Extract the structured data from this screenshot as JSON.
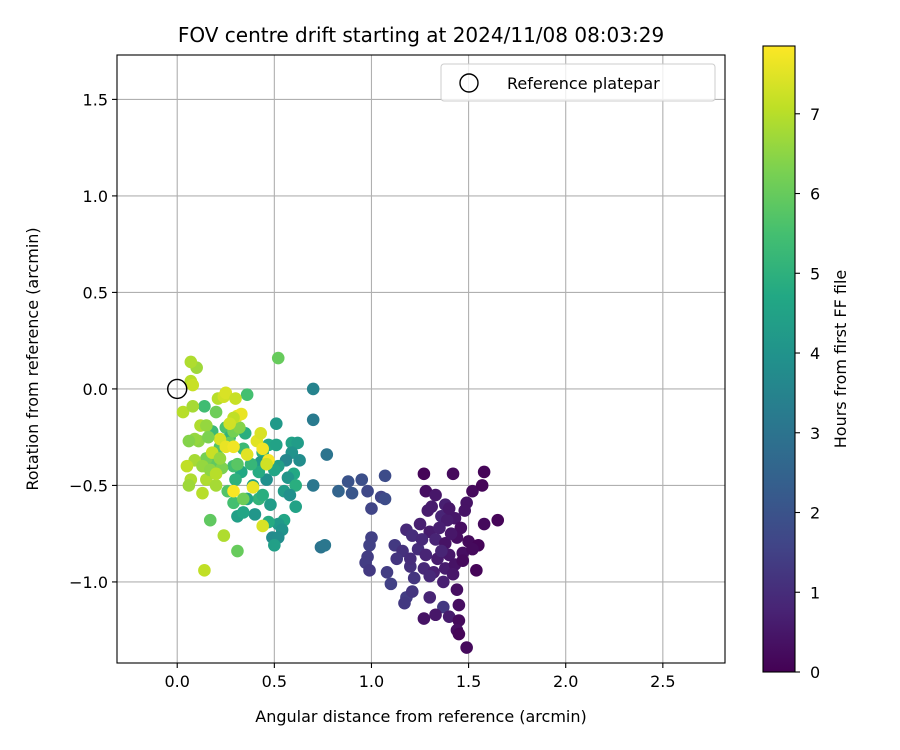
{
  "chart_data": {
    "type": "scatter",
    "title": "FOV centre drift starting at 2024/11/08 08:03:29",
    "xlabel": "Angular distance from reference (arcmin)",
    "ylabel": "Rotation from reference (arcmin)",
    "xlim": [
      -0.31,
      2.82
    ],
    "ylim": [
      -1.42,
      1.73
    ],
    "xticks": [
      "0.0",
      "0.5",
      "1.0",
      "1.5",
      "2.0",
      "2.5"
    ],
    "xtick_values": [
      0.0,
      0.5,
      1.0,
      1.5,
      2.0,
      2.5
    ],
    "yticks": [
      "−1.0",
      "−0.5",
      "0.0",
      "0.5",
      "1.0",
      "1.5"
    ],
    "ytick_values": [
      -1.0,
      -0.5,
      0.0,
      0.5,
      1.0,
      1.5
    ],
    "grid": true,
    "legend": {
      "placement": "top-right",
      "entries": [
        "Reference platepar"
      ]
    },
    "reference_point": {
      "x": 0.0,
      "y": 0.0,
      "marker": "open-circle"
    },
    "colorbar": {
      "label": "Hours from first FF file",
      "colormap": "viridis",
      "range": [
        0,
        7.85
      ],
      "ticks": [
        "0",
        "1",
        "2",
        "3",
        "4",
        "5",
        "6",
        "7"
      ],
      "tick_values": [
        0,
        1,
        2,
        3,
        4,
        5,
        6,
        7
      ]
    },
    "points": [
      {
        "x": 1.27,
        "y": -0.44,
        "c": 0.1
      },
      {
        "x": 1.42,
        "y": -0.44,
        "c": 0.2
      },
      {
        "x": 1.58,
        "y": -0.43,
        "c": 0.1
      },
      {
        "x": 1.28,
        "y": -0.53,
        "c": 0.3
      },
      {
        "x": 1.33,
        "y": -0.55,
        "c": 0.5
      },
      {
        "x": 1.38,
        "y": -0.6,
        "c": 0.7
      },
      {
        "x": 1.49,
        "y": -0.59,
        "c": 0.4
      },
      {
        "x": 1.52,
        "y": -0.53,
        "c": 0.2
      },
      {
        "x": 1.57,
        "y": -0.5,
        "c": 0.1
      },
      {
        "x": 1.29,
        "y": -0.63,
        "c": 0.6
      },
      {
        "x": 1.36,
        "y": -0.66,
        "c": 0.8
      },
      {
        "x": 1.43,
        "y": -0.67,
        "c": 0.5
      },
      {
        "x": 1.46,
        "y": -0.72,
        "c": 0.3
      },
      {
        "x": 1.58,
        "y": -0.7,
        "c": 0.2
      },
      {
        "x": 1.65,
        "y": -0.68,
        "c": 0.1
      },
      {
        "x": 1.18,
        "y": -0.73,
        "c": 0.9
      },
      {
        "x": 1.25,
        "y": -0.7,
        "c": 0.7
      },
      {
        "x": 1.3,
        "y": -0.74,
        "c": 0.6
      },
      {
        "x": 1.33,
        "y": -0.78,
        "c": 0.8
      },
      {
        "x": 1.38,
        "y": -0.8,
        "c": 0.4
      },
      {
        "x": 1.44,
        "y": -0.77,
        "c": 0.3
      },
      {
        "x": 1.5,
        "y": -0.79,
        "c": 0.2
      },
      {
        "x": 1.55,
        "y": -0.81,
        "c": 0.1
      },
      {
        "x": 1.24,
        "y": -0.83,
        "c": 1.0
      },
      {
        "x": 1.28,
        "y": -0.86,
        "c": 0.8
      },
      {
        "x": 1.34,
        "y": -0.88,
        "c": 0.6
      },
      {
        "x": 1.4,
        "y": -0.86,
        "c": 0.5
      },
      {
        "x": 1.47,
        "y": -0.85,
        "c": 0.3
      },
      {
        "x": 1.52,
        "y": -0.83,
        "c": 0.2
      },
      {
        "x": 1.2,
        "y": -0.92,
        "c": 1.1
      },
      {
        "x": 1.27,
        "y": -0.93,
        "c": 0.9
      },
      {
        "x": 1.32,
        "y": -0.95,
        "c": 0.7
      },
      {
        "x": 1.38,
        "y": -0.93,
        "c": 0.6
      },
      {
        "x": 1.43,
        "y": -0.91,
        "c": 0.4
      },
      {
        "x": 1.54,
        "y": -0.94,
        "c": 0.1
      },
      {
        "x": 1.22,
        "y": -0.98,
        "c": 1.2
      },
      {
        "x": 1.3,
        "y": -0.97,
        "c": 0.9
      },
      {
        "x": 1.37,
        "y": -1.0,
        "c": 0.7
      },
      {
        "x": 1.42,
        "y": -0.96,
        "c": 0.5
      },
      {
        "x": 1.44,
        "y": -1.04,
        "c": 0.3
      },
      {
        "x": 1.18,
        "y": -1.08,
        "c": 1.4
      },
      {
        "x": 1.21,
        "y": -1.05,
        "c": 1.2
      },
      {
        "x": 1.17,
        "y": -1.11,
        "c": 1.3
      },
      {
        "x": 1.3,
        "y": -1.08,
        "c": 0.8
      },
      {
        "x": 1.37,
        "y": -1.13,
        "c": 1.3
      },
      {
        "x": 1.45,
        "y": -1.12,
        "c": 0.3
      },
      {
        "x": 1.27,
        "y": -1.19,
        "c": 0.4
      },
      {
        "x": 1.33,
        "y": -1.17,
        "c": 0.5
      },
      {
        "x": 1.4,
        "y": -1.18,
        "c": 0.6
      },
      {
        "x": 1.45,
        "y": -1.2,
        "c": 0.2
      },
      {
        "x": 1.44,
        "y": -1.25,
        "c": 0.3
      },
      {
        "x": 1.45,
        "y": -1.27,
        "c": 0.1
      },
      {
        "x": 1.49,
        "y": -1.34,
        "c": 0.2
      },
      {
        "x": 1.21,
        "y": -0.76,
        "c": 1.0
      },
      {
        "x": 1.12,
        "y": -0.81,
        "c": 1.3
      },
      {
        "x": 1.16,
        "y": -0.84,
        "c": 1.1
      },
      {
        "x": 1.13,
        "y": -0.88,
        "c": 1.2
      },
      {
        "x": 1.2,
        "y": -0.88,
        "c": 1.0
      },
      {
        "x": 1.08,
        "y": -0.95,
        "c": 1.4
      },
      {
        "x": 1.1,
        "y": -1.01,
        "c": 1.5
      },
      {
        "x": 1.39,
        "y": -0.68,
        "c": 0.6
      },
      {
        "x": 1.48,
        "y": -0.63,
        "c": 0.4
      },
      {
        "x": 1.35,
        "y": -0.72,
        "c": 0.7
      },
      {
        "x": 1.41,
        "y": -0.75,
        "c": 0.5
      },
      {
        "x": 1.26,
        "y": -0.78,
        "c": 0.9
      },
      {
        "x": 1.47,
        "y": -0.89,
        "c": 0.2
      },
      {
        "x": 1.31,
        "y": -0.61,
        "c": 0.6
      },
      {
        "x": 1.4,
        "y": -0.62,
        "c": 0.5
      },
      {
        "x": 1.36,
        "y": -0.84,
        "c": 0.8
      },
      {
        "x": 0.88,
        "y": -0.48,
        "c": 2.0
      },
      {
        "x": 0.95,
        "y": -0.47,
        "c": 1.9
      },
      {
        "x": 1.07,
        "y": -0.45,
        "c": 1.8
      },
      {
        "x": 0.9,
        "y": -0.54,
        "c": 2.1
      },
      {
        "x": 0.98,
        "y": -0.53,
        "c": 1.7
      },
      {
        "x": 1.05,
        "y": -0.56,
        "c": 1.6
      },
      {
        "x": 1.07,
        "y": -0.57,
        "c": 1.8
      },
      {
        "x": 1.0,
        "y": -0.62,
        "c": 1.6
      },
      {
        "x": 1.0,
        "y": -0.77,
        "c": 1.5
      },
      {
        "x": 0.99,
        "y": -0.81,
        "c": 1.5
      },
      {
        "x": 0.98,
        "y": -0.87,
        "c": 1.4
      },
      {
        "x": 0.97,
        "y": -0.9,
        "c": 1.4
      },
      {
        "x": 0.99,
        "y": -0.94,
        "c": 1.3
      },
      {
        "x": 0.83,
        "y": -0.53,
        "c": 2.5
      },
      {
        "x": 0.77,
        "y": -0.34,
        "c": 3.0
      },
      {
        "x": 0.7,
        "y": -0.5,
        "c": 3.1
      },
      {
        "x": 0.74,
        "y": -0.82,
        "c": 3.0
      },
      {
        "x": 0.76,
        "y": -0.81,
        "c": 3.1
      },
      {
        "x": 0.7,
        "y": 0.0,
        "c": 3.5
      },
      {
        "x": 0.7,
        "y": -0.16,
        "c": 3.2
      },
      {
        "x": 0.51,
        "y": -0.18,
        "c": 4.2
      },
      {
        "x": 0.59,
        "y": -0.28,
        "c": 4.5
      },
      {
        "x": 0.62,
        "y": -0.28,
        "c": 4.3
      },
      {
        "x": 0.59,
        "y": -0.33,
        "c": 4.0
      },
      {
        "x": 0.63,
        "y": -0.37,
        "c": 3.8
      },
      {
        "x": 0.56,
        "y": -0.37,
        "c": 3.6
      },
      {
        "x": 0.52,
        "y": -0.4,
        "c": 4.4
      },
      {
        "x": 0.6,
        "y": -0.44,
        "c": 4.7
      },
      {
        "x": 0.57,
        "y": -0.46,
        "c": 4.1
      },
      {
        "x": 0.61,
        "y": -0.5,
        "c": 4.9
      },
      {
        "x": 0.55,
        "y": -0.53,
        "c": 4.3
      },
      {
        "x": 0.58,
        "y": -0.55,
        "c": 3.9
      },
      {
        "x": 0.61,
        "y": -0.61,
        "c": 4.5
      },
      {
        "x": 0.55,
        "y": -0.68,
        "c": 4.6
      },
      {
        "x": 0.52,
        "y": -0.7,
        "c": 4.2
      },
      {
        "x": 0.54,
        "y": -0.73,
        "c": 4.0
      },
      {
        "x": 0.49,
        "y": -0.77,
        "c": 3.7
      },
      {
        "x": 0.52,
        "y": -0.77,
        "c": 3.8
      },
      {
        "x": 0.5,
        "y": -0.81,
        "c": 4.4
      },
      {
        "x": 0.47,
        "y": -0.69,
        "c": 4.8
      },
      {
        "x": 0.48,
        "y": -0.6,
        "c": 4.3
      },
      {
        "x": 0.46,
        "y": -0.47,
        "c": 3.9
      },
      {
        "x": 0.5,
        "y": -0.42,
        "c": 4.6
      },
      {
        "x": 0.47,
        "y": -0.29,
        "c": 4.7
      },
      {
        "x": 0.51,
        "y": -0.29,
        "c": 4.5
      },
      {
        "x": 0.44,
        "y": -0.33,
        "c": 5.0
      },
      {
        "x": 0.43,
        "y": -0.38,
        "c": 4.2
      },
      {
        "x": 0.42,
        "y": -0.43,
        "c": 4.8
      },
      {
        "x": 0.39,
        "y": -0.5,
        "c": 4.4
      },
      {
        "x": 0.42,
        "y": -0.57,
        "c": 5.1
      },
      {
        "x": 0.44,
        "y": -0.55,
        "c": 4.9
      },
      {
        "x": 0.36,
        "y": -0.57,
        "c": 4.6
      },
      {
        "x": 0.4,
        "y": -0.65,
        "c": 4.1
      },
      {
        "x": 0.38,
        "y": -0.39,
        "c": 5.2
      },
      {
        "x": 0.34,
        "y": -0.31,
        "c": 5.3
      },
      {
        "x": 0.35,
        "y": -0.23,
        "c": 4.9
      },
      {
        "x": 0.36,
        "y": -0.03,
        "c": 5.5
      },
      {
        "x": 0.31,
        "y": -0.66,
        "c": 4.4
      },
      {
        "x": 0.34,
        "y": -0.64,
        "c": 4.6
      },
      {
        "x": 0.33,
        "y": -0.43,
        "c": 4.7
      },
      {
        "x": 0.3,
        "y": -0.47,
        "c": 5.0
      },
      {
        "x": 0.29,
        "y": -0.4,
        "c": 5.4
      },
      {
        "x": 0.25,
        "y": -0.2,
        "c": 5.6
      },
      {
        "x": 0.27,
        "y": -0.25,
        "c": 5.1
      },
      {
        "x": 0.31,
        "y": -0.39,
        "c": 5.8
      },
      {
        "x": 0.31,
        "y": -0.84,
        "c": 6.0
      },
      {
        "x": 0.17,
        "y": -0.68,
        "c": 5.9
      },
      {
        "x": 0.29,
        "y": -0.59,
        "c": 5.5
      },
      {
        "x": 0.26,
        "y": -0.53,
        "c": 5.7
      },
      {
        "x": 0.34,
        "y": -0.57,
        "c": 6.1
      },
      {
        "x": 0.52,
        "y": 0.16,
        "c": 6.0
      },
      {
        "x": 0.14,
        "y": -0.09,
        "c": 5.4
      },
      {
        "x": 0.2,
        "y": -0.12,
        "c": 6.1
      },
      {
        "x": 0.18,
        "y": -0.22,
        "c": 5.3
      },
      {
        "x": 0.22,
        "y": -0.3,
        "c": 5.7
      },
      {
        "x": 0.19,
        "y": -0.38,
        "c": 5.9
      },
      {
        "x": 0.15,
        "y": -0.36,
        "c": 6.2
      },
      {
        "x": 0.23,
        "y": -0.41,
        "c": 6.3
      },
      {
        "x": 0.27,
        "y": -0.28,
        "c": 6.0
      },
      {
        "x": 0.29,
        "y": -0.22,
        "c": 6.2
      },
      {
        "x": 0.32,
        "y": -0.2,
        "c": 6.4
      },
      {
        "x": 0.1,
        "y": 0.11,
        "c": 6.7
      },
      {
        "x": 0.07,
        "y": 0.14,
        "c": 6.9
      },
      {
        "x": 0.07,
        "y": 0.04,
        "c": 7.0
      },
      {
        "x": 0.08,
        "y": 0.02,
        "c": 7.2
      },
      {
        "x": 0.03,
        "y": -0.12,
        "c": 7.0
      },
      {
        "x": 0.08,
        "y": -0.09,
        "c": 6.8
      },
      {
        "x": 0.12,
        "y": -0.19,
        "c": 6.9
      },
      {
        "x": 0.15,
        "y": -0.19,
        "c": 6.6
      },
      {
        "x": 0.11,
        "y": -0.27,
        "c": 6.5
      },
      {
        "x": 0.09,
        "y": -0.37,
        "c": 6.8
      },
      {
        "x": 0.05,
        "y": -0.4,
        "c": 7.1
      },
      {
        "x": 0.07,
        "y": -0.47,
        "c": 6.9
      },
      {
        "x": 0.06,
        "y": -0.5,
        "c": 6.7
      },
      {
        "x": 0.13,
        "y": -0.4,
        "c": 6.6
      },
      {
        "x": 0.15,
        "y": -0.47,
        "c": 6.9
      },
      {
        "x": 0.17,
        "y": -0.42,
        "c": 6.5
      },
      {
        "x": 0.2,
        "y": -0.5,
        "c": 6.8
      },
      {
        "x": 0.13,
        "y": -0.54,
        "c": 7.0
      },
      {
        "x": 0.24,
        "y": -0.76,
        "c": 6.9
      },
      {
        "x": 0.14,
        "y": -0.94,
        "c": 7.1
      },
      {
        "x": 0.21,
        "y": -0.05,
        "c": 7.0
      },
      {
        "x": 0.24,
        "y": -0.04,
        "c": 7.3
      },
      {
        "x": 0.25,
        "y": -0.02,
        "c": 7.4
      },
      {
        "x": 0.3,
        "y": -0.05,
        "c": 7.2
      },
      {
        "x": 0.31,
        "y": -0.14,
        "c": 7.5
      },
      {
        "x": 0.33,
        "y": -0.13,
        "c": 7.6
      },
      {
        "x": 0.29,
        "y": -0.15,
        "c": 7.1
      },
      {
        "x": 0.27,
        "y": -0.18,
        "c": 7.3
      },
      {
        "x": 0.22,
        "y": -0.26,
        "c": 7.4
      },
      {
        "x": 0.25,
        "y": -0.3,
        "c": 7.6
      },
      {
        "x": 0.29,
        "y": -0.3,
        "c": 7.7
      },
      {
        "x": 0.41,
        "y": -0.27,
        "c": 7.5
      },
      {
        "x": 0.43,
        "y": -0.23,
        "c": 7.4
      },
      {
        "x": 0.44,
        "y": -0.31,
        "c": 7.7
      },
      {
        "x": 0.47,
        "y": -0.37,
        "c": 7.8
      },
      {
        "x": 0.46,
        "y": -0.39,
        "c": 7.3
      },
      {
        "x": 0.36,
        "y": -0.34,
        "c": 7.5
      },
      {
        "x": 0.39,
        "y": -0.51,
        "c": 7.6
      },
      {
        "x": 0.29,
        "y": -0.53,
        "c": 7.8
      },
      {
        "x": 0.44,
        "y": -0.71,
        "c": 7.4
      },
      {
        "x": 0.18,
        "y": -0.33,
        "c": 7.2
      },
      {
        "x": 0.22,
        "y": -0.36,
        "c": 6.6
      },
      {
        "x": 0.2,
        "y": -0.44,
        "c": 7.0
      },
      {
        "x": 0.09,
        "y": -0.26,
        "c": 6.6
      },
      {
        "x": 0.06,
        "y": -0.27,
        "c": 6.4
      },
      {
        "x": 0.16,
        "y": -0.25,
        "c": 6.3
      }
    ]
  }
}
